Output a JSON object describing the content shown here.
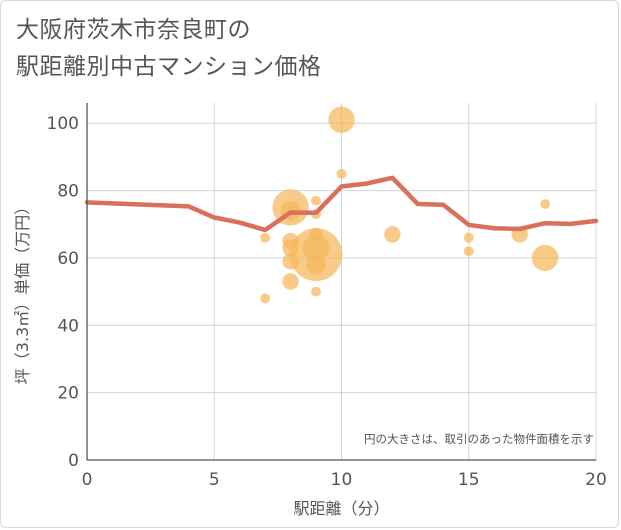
{
  "title_line1": "大阪府茨木市奈良町の",
  "title_line2": "駅距離別中古マンション価格",
  "chart_data": {
    "type": "scatter",
    "xlabel": "駅距離（分）",
    "ylabel": "坪（3.3㎡）単価（万円）",
    "xlim": [
      0,
      20
    ],
    "ylim": [
      0,
      106
    ],
    "xticks": [
      0,
      5,
      10,
      15,
      20
    ],
    "yticks": [
      0,
      20,
      40,
      60,
      80,
      100
    ],
    "grid": true,
    "note": "円の大きさは、取引のあった物件面積を示す",
    "colors": {
      "line": "#d9705b",
      "bubble": "#f5b75c",
      "grid": "#c5d7e0",
      "axis": "#555555"
    },
    "line_series": {
      "x": [
        0,
        1,
        2,
        3,
        4,
        5,
        6,
        7,
        8,
        9,
        10,
        11,
        12,
        13,
        14,
        15,
        16,
        17,
        18,
        19,
        20
      ],
      "y": [
        76.5,
        76.2,
        75.9,
        75.6,
        75.3,
        72,
        70.5,
        68.3,
        73.5,
        73.4,
        81.2,
        82.1,
        83.8,
        76,
        75.8,
        69.8,
        68.8,
        68.6,
        70.3,
        70.1,
        71
      ]
    },
    "bubbles": [
      {
        "x": 7,
        "y": 48,
        "size": 3
      },
      {
        "x": 7,
        "y": 66,
        "size": 3
      },
      {
        "x": 8,
        "y": 75,
        "size": 11
      },
      {
        "x": 8,
        "y": 74,
        "size": 6
      },
      {
        "x": 8,
        "y": 65,
        "size": 5
      },
      {
        "x": 8,
        "y": 63,
        "size": 5
      },
      {
        "x": 8,
        "y": 59,
        "size": 5
      },
      {
        "x": 8,
        "y": 53,
        "size": 5
      },
      {
        "x": 9,
        "y": 77,
        "size": 3
      },
      {
        "x": 9,
        "y": 73,
        "size": 3
      },
      {
        "x": 9,
        "y": 67,
        "size": 4
      },
      {
        "x": 9,
        "y": 63,
        "size": 8
      },
      {
        "x": 9,
        "y": 61,
        "size": 16
      },
      {
        "x": 9,
        "y": 58,
        "size": 6
      },
      {
        "x": 9,
        "y": 50,
        "size": 3
      },
      {
        "x": 10,
        "y": 101,
        "size": 8
      },
      {
        "x": 10,
        "y": 85,
        "size": 3
      },
      {
        "x": 12,
        "y": 67,
        "size": 5
      },
      {
        "x": 15,
        "y": 66,
        "size": 3
      },
      {
        "x": 15,
        "y": 62,
        "size": 3
      },
      {
        "x": 17,
        "y": 67,
        "size": 5
      },
      {
        "x": 18,
        "y": 76,
        "size": 3
      },
      {
        "x": 18,
        "y": 60,
        "size": 8
      }
    ]
  }
}
